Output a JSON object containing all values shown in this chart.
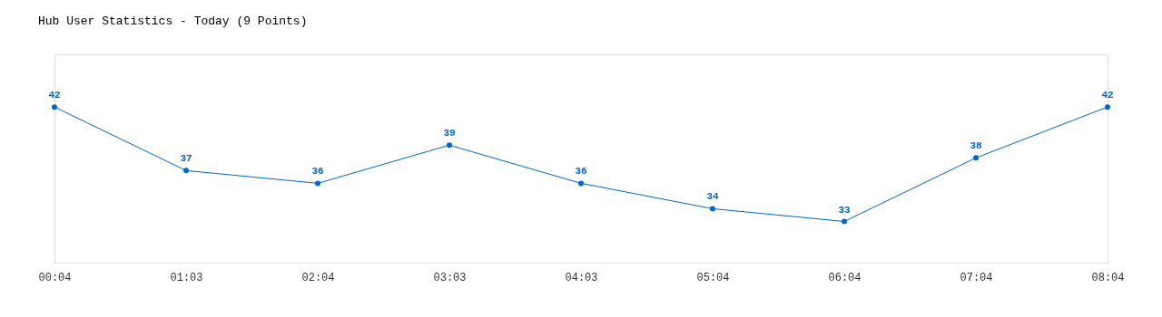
{
  "chart_data": {
    "type": "line",
    "title": "Hub User Statistics - Today (9 Points)",
    "categories": [
      "00:04",
      "01:03",
      "02:04",
      "03:03",
      "04:03",
      "05:04",
      "06:04",
      "07:04",
      "08:04"
    ],
    "series": [
      {
        "color": "#0066cc",
        "values": [
          42,
          37,
          36,
          39,
          36,
          34,
          33,
          38,
          42
        ]
      }
    ],
    "data_labels": true,
    "marker": "circle",
    "line_style": "solid",
    "grid": false,
    "legend": false
  }
}
